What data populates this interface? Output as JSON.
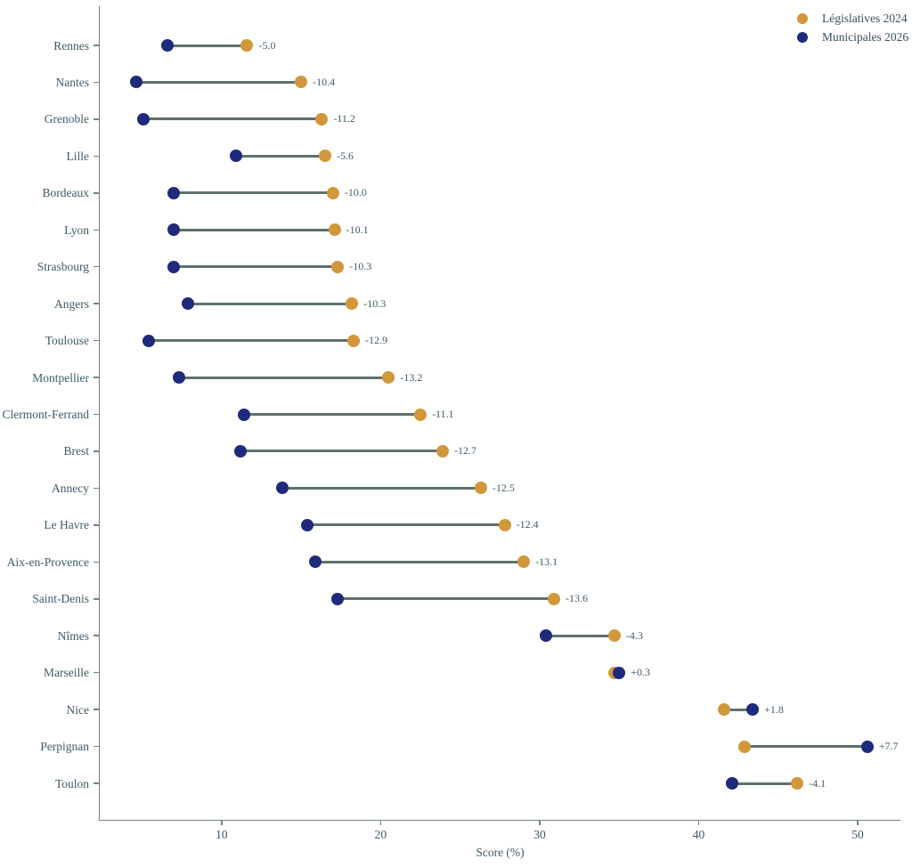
{
  "chart_data": {
    "type": "scatter",
    "variant": "dumbbell",
    "title": "",
    "xlabel": "Score (%)",
    "ylabel": "",
    "xlim": [
      2.33,
      52.69
    ],
    "x_ticks": [
      10,
      20,
      30,
      40,
      50
    ],
    "grid": false,
    "legend_position": "top-right",
    "categories": [
      "Rennes",
      "Nantes",
      "Grenoble",
      "Lille",
      "Bordeaux",
      "Lyon",
      "Strasbourg",
      "Angers",
      "Toulouse",
      "Montpellier",
      "Clermont-Ferrand",
      "Brest",
      "Annecy",
      "Le Havre",
      "Aix-en-Provence",
      "Saint-Denis",
      "Nîmes",
      "Marseille",
      "Nice",
      "Perpignan",
      "Toulon"
    ],
    "series": [
      {
        "name": "Législatives 2024",
        "color": "#d2973b",
        "values": [
          11.6,
          15.0,
          16.3,
          16.5,
          17.0,
          17.1,
          17.3,
          18.2,
          18.3,
          20.5,
          22.5,
          23.9,
          26.3,
          27.8,
          29.0,
          30.9,
          34.7,
          34.7,
          41.6,
          42.9,
          46.2
        ]
      },
      {
        "name": "Municipales 2026",
        "color": "#202a7c",
        "values": [
          6.6,
          4.6,
          5.1,
          10.9,
          7.0,
          7.0,
          7.0,
          7.9,
          5.4,
          7.3,
          11.4,
          11.2,
          13.8,
          15.4,
          15.9,
          17.3,
          30.4,
          35.0,
          43.4,
          50.6,
          42.1
        ]
      }
    ],
    "diff_labels": [
      "-5.0",
      "-10.4",
      "-11.2",
      "-5.6",
      "-10.0",
      "-10.1",
      "-10.3",
      "-10.3",
      "-12.9",
      "-13.2",
      "-11.1",
      "-12.7",
      "-12.5",
      "-12.4",
      "-13.1",
      "-13.6",
      "-4.3",
      "+0.3",
      "+1.8",
      "+7.7",
      "-4.1"
    ]
  },
  "colors": {
    "legislatives": "#d2973b",
    "municipales": "#202a7c",
    "connector": "#5e726d",
    "axis": "#74867f",
    "text": "#3f5b68"
  }
}
